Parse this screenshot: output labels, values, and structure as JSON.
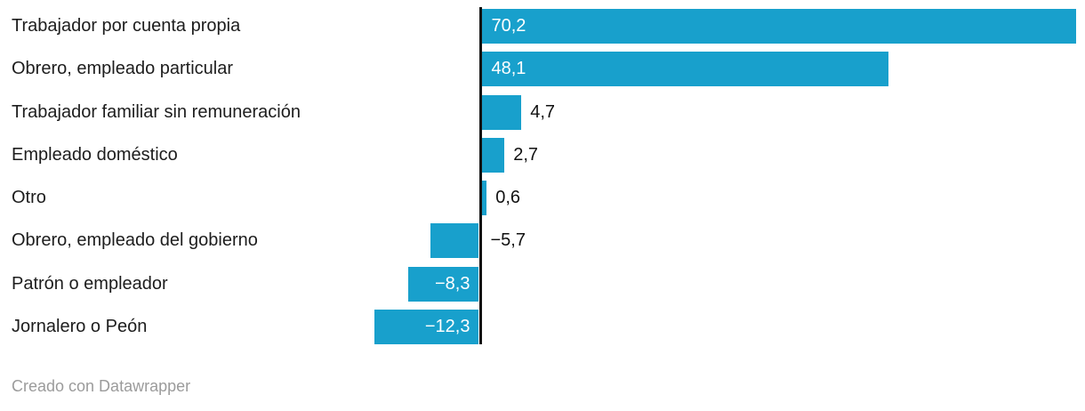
{
  "chart_data": {
    "type": "bar",
    "orientation": "horizontal",
    "title": "",
    "xlabel": "",
    "ylabel": "",
    "grid": false,
    "legend": false,
    "xlim": [
      -12.3,
      70.2
    ],
    "categories": [
      "Trabajador por cuenta propia",
      "Obrero, empleado particular",
      "Trabajador familiar sin remuneración",
      "Empleado doméstico",
      "Otro",
      "Obrero, empleado del gobierno",
      "Patrón o empleador",
      "Jornalero o Peón"
    ],
    "values": [
      70.2,
      48.1,
      4.7,
      2.7,
      0.6,
      -5.7,
      -8.3,
      -12.3
    ],
    "value_labels": [
      "70,2",
      "48,1",
      "4,7",
      "2,7",
      "0,6",
      "−5,7",
      "−8,3",
      "−12,3"
    ],
    "decimal_separator": ","
  },
  "colors": {
    "bar": "#18a0cc",
    "axis": "#121212",
    "label_dark": "#1d1d1d",
    "value_inside": "#ffffff",
    "value_outside": "#111111",
    "footer_gray": "#9b9b9b",
    "background": "#ffffff"
  },
  "footer": {
    "text": "Creado con Datawrapper"
  }
}
